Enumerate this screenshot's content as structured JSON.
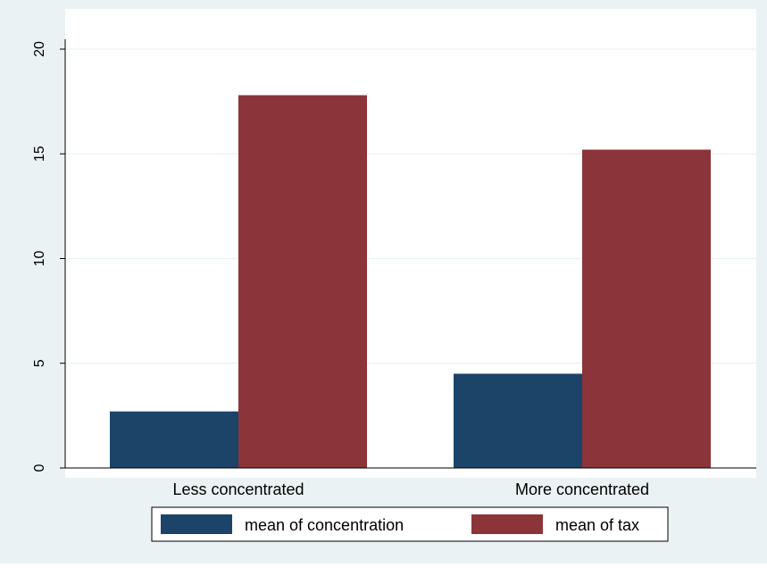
{
  "chart_data": {
    "type": "bar",
    "categories": [
      "Less concentrated",
      "More concentrated"
    ],
    "series": [
      {
        "name": "mean of concentration",
        "values": [
          2.7,
          4.5
        ],
        "color": "#1c4468"
      },
      {
        "name": "mean of tax",
        "values": [
          17.8,
          15.2
        ],
        "color": "#8b343a"
      }
    ],
    "ylim": [
      0,
      20
    ],
    "yticks": [
      "0",
      "5",
      "10",
      "15",
      "20"
    ],
    "grid": true,
    "legend_position": "bottom",
    "outer_background": "#eaf2f3",
    "plot_background": "#ffffff"
  }
}
